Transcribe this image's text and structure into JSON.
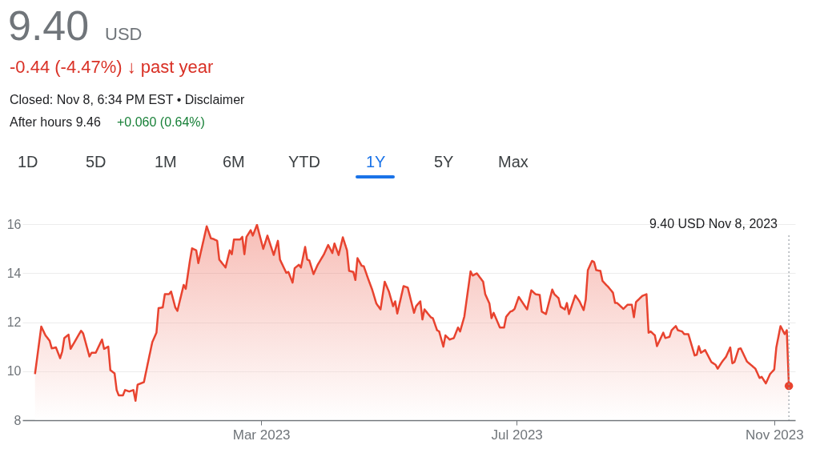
{
  "chart_data": {
    "type": "area",
    "title": "9.40",
    "subtitle": "USD",
    "annotations": [
      "-0.44 (-4.47%) ↓ past year",
      "Closed: Nov 8, 6:34 PM EST • Disclaimer",
      "After hours 9.46",
      "+0.060 (0.64%)",
      "1D",
      "5D",
      "1M",
      "6M",
      "YTD",
      "1Y",
      "5Y",
      "Max",
      "9.40 USD  Nov 8, 2023"
    ],
    "xlim": [
      "2022-11-07",
      "2023-11-11"
    ],
    "xticks": [
      {
        "value": "2023-03-01",
        "label": "Mar 2023"
      },
      {
        "value": "2023-07-01",
        "label": "Jul 2023"
      },
      {
        "value": "2023-11-01",
        "label": "Nov 2023"
      }
    ],
    "ylim": [
      8,
      16
    ],
    "yticks": [
      8,
      10,
      12,
      14,
      16
    ],
    "grid": "y",
    "ref_lines": [
      {
        "axis": "x",
        "value": "2023-11-08",
        "label": null,
        "color": "#9aa0a6",
        "line_style": "dotted"
      }
    ],
    "series": [
      {
        "color": "#e8432f",
        "marker": "none",
        "x": [
          "2022-11-13",
          "2022-11-16",
          "2022-11-18",
          "2022-11-20",
          "2022-11-21",
          "2022-11-23",
          "2022-11-25",
          "2022-11-26",
          "2022-11-27",
          "2022-11-29",
          "2022-11-30",
          "2022-12-05",
          "2022-12-06",
          "2022-12-09",
          "2022-12-10",
          "2022-12-12",
          "2022-12-15",
          "2022-12-16",
          "2022-12-18",
          "2022-12-19",
          "2022-12-21",
          "2022-12-22",
          "2022-12-23",
          "2022-12-25",
          "2022-12-26",
          "2022-12-28",
          "2022-12-30",
          "2022-12-31",
          "2023-01-01",
          "2023-01-04",
          "2023-01-06",
          "2023-01-08",
          "2023-01-10",
          "2023-01-11",
          "2023-01-13",
          "2023-01-14",
          "2023-01-16",
          "2023-01-17",
          "2023-01-19",
          "2023-01-20",
          "2023-01-23",
          "2023-01-24",
          "2023-01-26",
          "2023-01-27",
          "2023-01-29",
          "2023-01-30",
          "2023-02-03",
          "2023-02-05",
          "2023-02-06",
          "2023-02-08",
          "2023-02-09",
          "2023-02-12",
          "2023-02-14",
          "2023-02-15",
          "2023-02-16",
          "2023-02-19",
          "2023-02-20",
          "2023-02-21",
          "2023-02-22",
          "2023-02-24",
          "2023-02-25",
          "2023-02-27",
          "2023-02-28",
          "2023-03-02",
          "2023-03-04",
          "2023-03-07",
          "2023-03-09",
          "2023-03-10",
          "2023-03-13",
          "2023-03-14",
          "2023-03-16",
          "2023-03-17",
          "2023-03-19",
          "2023-03-20",
          "2023-03-22",
          "2023-03-23",
          "2023-03-24",
          "2023-03-26",
          "2023-03-28",
          "2023-03-31",
          "2023-04-02",
          "2023-04-04",
          "2023-04-05",
          "2023-04-07",
          "2023-04-09",
          "2023-04-11",
          "2023-04-12",
          "2023-04-14",
          "2023-04-15",
          "2023-04-16",
          "2023-04-18",
          "2023-04-19",
          "2023-04-21",
          "2023-04-23",
          "2023-04-25",
          "2023-04-27",
          "2023-04-29",
          "2023-05-01",
          "2023-05-03",
          "2023-05-04",
          "2023-05-05",
          "2023-05-08",
          "2023-05-10",
          "2023-05-13",
          "2023-05-14",
          "2023-05-16",
          "2023-05-17",
          "2023-05-18",
          "2023-05-21",
          "2023-05-22",
          "2023-05-24",
          "2023-05-25",
          "2023-05-27",
          "2023-05-28",
          "2023-05-30",
          "2023-06-01",
          "2023-06-03",
          "2023-06-04",
          "2023-06-06",
          "2023-06-09",
          "2023-06-10",
          "2023-06-12",
          "2023-06-15",
          "2023-06-16",
          "2023-06-18",
          "2023-06-19",
          "2023-06-20",
          "2023-06-23",
          "2023-06-25",
          "2023-06-26",
          "2023-06-28",
          "2023-06-29",
          "2023-06-30",
          "2023-07-02",
          "2023-07-06",
          "2023-07-08",
          "2023-07-10",
          "2023-07-12",
          "2023-07-13",
          "2023-07-15",
          "2023-07-18",
          "2023-07-19",
          "2023-07-21",
          "2023-07-22",
          "2023-07-24",
          "2023-07-25",
          "2023-07-26",
          "2023-07-29",
          "2023-07-31",
          "2023-08-02",
          "2023-08-03",
          "2023-08-04",
          "2023-08-06",
          "2023-08-07",
          "2023-08-08",
          "2023-08-10",
          "2023-08-11",
          "2023-08-14",
          "2023-08-16",
          "2023-08-17",
          "2023-08-18",
          "2023-08-21",
          "2023-08-22",
          "2023-08-23",
          "2023-08-25",
          "2023-08-26",
          "2023-08-27",
          "2023-08-30",
          "2023-09-01",
          "2023-09-02",
          "2023-09-03",
          "2023-09-05",
          "2023-09-06",
          "2023-09-09",
          "2023-09-10",
          "2023-09-12",
          "2023-09-13",
          "2023-09-15",
          "2023-09-16",
          "2023-09-18",
          "2023-09-19",
          "2023-09-21",
          "2023-09-24",
          "2023-09-25",
          "2023-09-26",
          "2023-09-27",
          "2023-09-29",
          "2023-10-01",
          "2023-10-02",
          "2023-10-04",
          "2023-10-05",
          "2023-10-07",
          "2023-10-09",
          "2023-10-11",
          "2023-10-12",
          "2023-10-13",
          "2023-10-15",
          "2023-10-16",
          "2023-10-19",
          "2023-10-20",
          "2023-10-23",
          "2023-10-25",
          "2023-10-26",
          "2023-10-28",
          "2023-10-30",
          "2023-11-01",
          "2023-11-02",
          "2023-11-04",
          "2023-11-06",
          "2023-11-07",
          "2023-11-08"
        ],
        "values": [
          9.88,
          11.82,
          11.46,
          11.24,
          10.93,
          10.97,
          10.53,
          10.8,
          11.35,
          11.49,
          10.91,
          11.65,
          11.54,
          10.6,
          10.75,
          10.75,
          11.29,
          10.91,
          11.0,
          10.04,
          9.91,
          9.23,
          9.01,
          9.01,
          9.23,
          9.17,
          9.23,
          8.79,
          9.45,
          9.55,
          10.37,
          11.18,
          11.57,
          12.57,
          12.6,
          13.14,
          13.14,
          13.25,
          12.6,
          12.46,
          13.52,
          13.36,
          14.52,
          15.01,
          14.93,
          14.41,
          15.91,
          15.42,
          15.4,
          15.32,
          14.55,
          14.23,
          14.93,
          14.77,
          15.37,
          15.37,
          15.48,
          14.77,
          15.48,
          15.75,
          15.53,
          15.97,
          15.64,
          14.99,
          15.53,
          14.74,
          15.32,
          14.55,
          14.01,
          14.05,
          13.61,
          14.2,
          14.34,
          14.23,
          15.07,
          14.55,
          14.52,
          13.96,
          14.34,
          14.77,
          15.15,
          14.82,
          15.21,
          14.74,
          15.46,
          14.93,
          14.09,
          14.05,
          13.72,
          14.61,
          14.3,
          14.28,
          13.79,
          13.33,
          12.76,
          12.52,
          13.65,
          13.25,
          12.65,
          12.85,
          12.35,
          13.47,
          13.41,
          12.38,
          12.65,
          12.85,
          12.11,
          12.52,
          12.2,
          12.16,
          11.67,
          11.62,
          11.0,
          11.46,
          11.29,
          11.35,
          11.78,
          11.62,
          12.22,
          14.07,
          13.9,
          13.99,
          13.65,
          13.14,
          12.76,
          12.16,
          12.38,
          11.78,
          11.78,
          12.22,
          12.43,
          12.46,
          12.54,
          13.03,
          12.52,
          13.3,
          13.14,
          13.11,
          12.43,
          12.33,
          13.33,
          13.14,
          12.98,
          12.63,
          12.52,
          12.78,
          12.33,
          13.09,
          12.85,
          12.49,
          12.92,
          14.12,
          14.5,
          14.45,
          14.12,
          14.09,
          13.68,
          13.41,
          13.2,
          12.78,
          12.78,
          12.54,
          12.63,
          12.71,
          12.71,
          12.2,
          12.82,
          13.07,
          13.14,
          11.57,
          11.62,
          11.46,
          11.02,
          11.57,
          11.35,
          11.4,
          11.67,
          11.84,
          11.67,
          11.62,
          11.51,
          11.51,
          10.64,
          10.67,
          11.02,
          10.75,
          10.86,
          10.53,
          10.37,
          10.26,
          10.1,
          10.37,
          10.59,
          10.97,
          10.32,
          10.37,
          10.91,
          10.93,
          10.39,
          10.32,
          10.1,
          9.72,
          9.77,
          9.5,
          9.88,
          10.07,
          10.97,
          11.84,
          11.51,
          11.67,
          9.4
        ]
      },
      {
        "type": "scatter",
        "color": "#e8432f",
        "marker": "circle",
        "x": [
          "2023-11-08"
        ],
        "values": [
          9.4
        ]
      }
    ]
  }
}
